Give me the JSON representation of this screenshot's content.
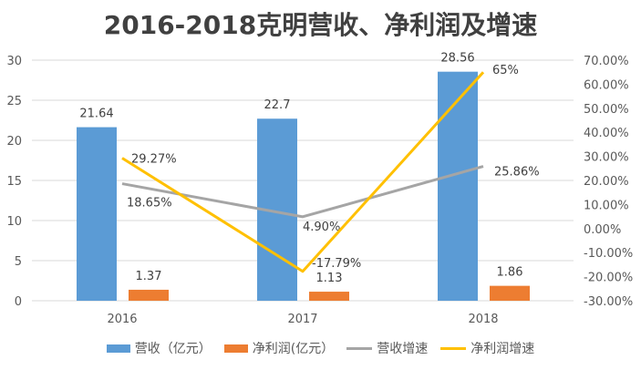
{
  "chart_data": {
    "type": "bar+line",
    "title": "2016-2018克明营收、净利润及增速",
    "categories": [
      "2016",
      "2017",
      "2018"
    ],
    "left_axis": {
      "ylim": [
        0,
        30
      ],
      "ticks": [
        "0",
        "5",
        "10",
        "15",
        "20",
        "25",
        "30"
      ]
    },
    "right_axis": {
      "ylim": [
        -30,
        70
      ],
      "ticks": [
        "-30.00%",
        "-20.00%",
        "-10.00%",
        "0.00%",
        "10.00%",
        "20.00%",
        "30.00%",
        "40.00%",
        "50.00%",
        "60.00%",
        "70.00%"
      ]
    },
    "grid": true,
    "legend_position": "bottom",
    "series": [
      {
        "name": "营收（亿元）",
        "type": "bar",
        "axis": "left",
        "color": "#5B9BD5",
        "values": [
          21.64,
          22.7,
          28.56
        ],
        "labels": [
          "21.64",
          "22.7",
          "28.56"
        ]
      },
      {
        "name": "净利润(亿元）",
        "type": "bar",
        "axis": "left",
        "color": "#ED7D31",
        "values": [
          1.37,
          1.13,
          1.86
        ],
        "labels": [
          "1.37",
          "1.13",
          "1.86"
        ]
      },
      {
        "name": "营收增速",
        "type": "line",
        "axis": "right",
        "color": "#A5A5A5",
        "values": [
          18.65,
          4.9,
          25.86
        ],
        "labels": [
          "18.65%",
          "4.90%",
          "25.86%"
        ]
      },
      {
        "name": "净利润增速",
        "type": "line",
        "axis": "right",
        "color": "#FFC000",
        "values": [
          29.27,
          -17.79,
          65
        ],
        "labels": [
          "29.27%",
          "-17.79%",
          "65%"
        ]
      }
    ]
  }
}
